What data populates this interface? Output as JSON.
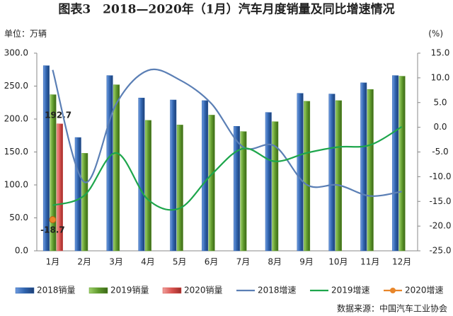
{
  "chart_data": {
    "type": "bar_line",
    "title": "图表3　2018—2020年（1月）汽车月度销量及同比增速情况",
    "y_label": "单位：万辆",
    "y2_label": "(%)",
    "source": "数据来源：中国汽车工业协会",
    "categories": [
      "1月",
      "2月",
      "3月",
      "4月",
      "5月",
      "6月",
      "7月",
      "8月",
      "9月",
      "10月",
      "11月",
      "12月"
    ],
    "ylim": [
      0,
      300
    ],
    "yticks": [
      {
        "value": 0,
        "label": "0.0"
      },
      {
        "value": 50,
        "label": "50.0"
      },
      {
        "value": 100,
        "label": "100.0"
      },
      {
        "value": 150,
        "label": "150.0"
      },
      {
        "value": 200,
        "label": "200.0"
      },
      {
        "value": 250,
        "label": "250.0"
      },
      {
        "value": 300,
        "label": "300.0"
      }
    ],
    "y2lim": [
      -25,
      15
    ],
    "y2ticks": [
      {
        "value": -25,
        "label": "-25.0"
      },
      {
        "value": -20,
        "label": "-20.0"
      },
      {
        "value": -15,
        "label": "-15.0"
      },
      {
        "value": -10,
        "label": "-10.0"
      },
      {
        "value": -5,
        "label": "-5.0"
      },
      {
        "value": 0,
        "label": "0.0"
      },
      {
        "value": 5,
        "label": "5.0"
      },
      {
        "value": 10,
        "label": "10.0"
      },
      {
        "value": 15,
        "label": "15.0"
      }
    ],
    "series": [
      {
        "name": "2018销量",
        "type": "bar",
        "color": "#2f63ad",
        "values": [
          281,
          172,
          266,
          232,
          229,
          228,
          189,
          210,
          239,
          238,
          255,
          266
        ]
      },
      {
        "name": "2019销量",
        "type": "bar",
        "color": "#5f9a2c",
        "values": [
          237,
          148,
          252,
          198,
          191,
          206,
          181,
          196,
          227,
          228,
          245,
          265
        ]
      },
      {
        "name": "2020销量",
        "type": "bar",
        "color": "#d9534f",
        "values": [
          192.7,
          null,
          null,
          null,
          null,
          null,
          null,
          null,
          null,
          null,
          null,
          null
        ],
        "data_labels": true
      },
      {
        "name": "2018增速",
        "type": "line",
        "axis": "y2",
        "color": "#5b7fb5",
        "values": [
          11.6,
          -11.1,
          4.7,
          11.5,
          9.6,
          4.8,
          -4.0,
          -3.8,
          -11.6,
          -11.7,
          -13.9,
          -13.0
        ]
      },
      {
        "name": "2019增速",
        "type": "line",
        "axis": "y2",
        "color": "#1ea64c",
        "values": [
          -15.8,
          -13.8,
          -5.2,
          -14.6,
          -16.4,
          -9.6,
          -4.3,
          -6.9,
          -5.2,
          -4.0,
          -3.6,
          0.1
        ]
      },
      {
        "name": "2020增速",
        "type": "line",
        "axis": "y2",
        "color": "#e8862a",
        "marker": "circle",
        "data_labels": true,
        "values": [
          -18.7,
          null,
          null,
          null,
          null,
          null,
          null,
          null,
          null,
          null,
          null,
          null
        ]
      }
    ]
  }
}
